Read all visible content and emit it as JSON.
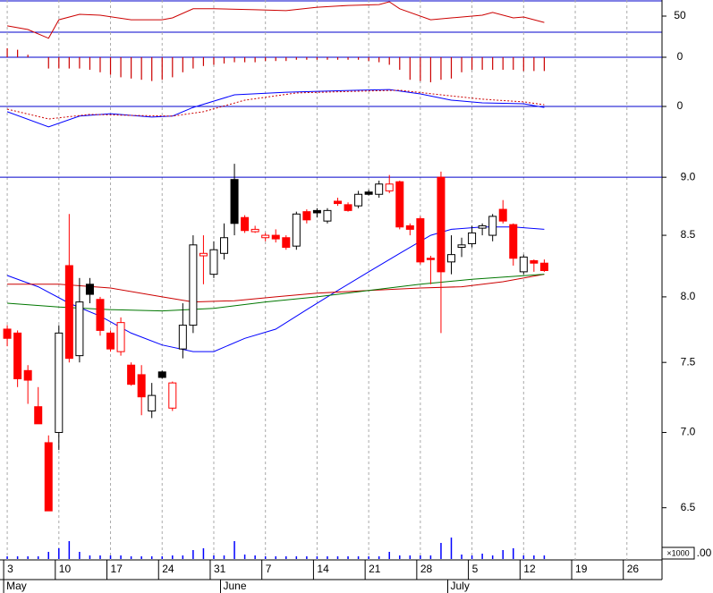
{
  "chart_data": {
    "type": "candlestick",
    "xlim": [
      -0.7,
      63.4
    ],
    "xticks": [
      {
        "value": 0,
        "label": "3"
      },
      {
        "value": 5,
        "label": "10"
      },
      {
        "value": 10,
        "label": "17"
      },
      {
        "value": 15,
        "label": "24"
      },
      {
        "value": 20,
        "label": "31"
      },
      {
        "value": 25,
        "label": "7"
      },
      {
        "value": 30,
        "label": "14"
      },
      {
        "value": 35,
        "label": "21"
      },
      {
        "value": 40,
        "label": "28"
      },
      {
        "value": 45,
        "label": "5"
      },
      {
        "value": 50,
        "label": "12"
      },
      {
        "value": 55,
        "label": "19"
      },
      {
        "value": 60,
        "label": "26"
      }
    ],
    "months": [
      {
        "value": 0,
        "label": "May"
      },
      {
        "value": 21,
        "label": "June"
      },
      {
        "value": 43,
        "label": "July"
      }
    ],
    "grid": true,
    "ylim": [
      6.18,
      9.39
    ],
    "log_scale": true,
    "yticks": [
      {
        "value": 9,
        "label": "9.0"
      },
      8.5,
      {
        "value": 8,
        "label": "8.0"
      },
      7.5,
      {
        "value": 7,
        "label": "7.0"
      },
      6.5
    ],
    "reference_line": 9,
    "candle_styles": {
      "red": {
        "fill": "#ff0000",
        "stroke": "#ff0000"
      },
      "white": {
        "fill": "#ffffff",
        "stroke": "#000000"
      },
      "black": {
        "fill": "#000000",
        "stroke": "#000000"
      },
      "hollow-red": {
        "fill": "#ffffff",
        "stroke": "#ff0000"
      }
    },
    "open": [
      7.75,
      7.72,
      7.44,
      7.18,
      6.93,
      7.0,
      8.25,
      7.55,
      8.1,
      7.98,
      7.72,
      7.58,
      7.48,
      7.41,
      7.15,
      7.43,
      7.17,
      7.6,
      7.78,
      8.33,
      8.18,
      8.35,
      8.98,
      8.65,
      8.53,
      8.5,
      8.5,
      8.48,
      8.41,
      8.7,
      8.71,
      8.62,
      8.79,
      8.76,
      8.75,
      8.87,
      8.85,
      8.94,
      8.96,
      8.58,
      8.64,
      8.31,
      9.0,
      8.28,
      8.4,
      8.43,
      8.56,
      8.5,
      8.72,
      8.59,
      8.2,
      8.29,
      8.27
    ],
    "high": [
      7.78,
      7.74,
      7.48,
      7.32,
      6.98,
      7.78,
      8.68,
      8.15,
      8.15,
      8.0,
      7.74,
      7.84,
      7.5,
      7.48,
      7.35,
      7.44,
      7.36,
      7.95,
      8.5,
      8.5,
      8.45,
      8.6,
      9.12,
      8.67,
      8.58,
      8.52,
      8.55,
      8.5,
      8.7,
      8.72,
      8.73,
      8.73,
      8.82,
      8.78,
      8.88,
      8.89,
      8.97,
      9.02,
      8.97,
      8.6,
      8.66,
      8.33,
      9.05,
      8.5,
      8.48,
      8.58,
      8.6,
      8.68,
      8.8,
      8.6,
      8.34,
      8.3,
      8.3
    ],
    "low": [
      7.62,
      7.32,
      7.2,
      7.06,
      6.48,
      6.88,
      7.5,
      7.5,
      7.95,
      7.7,
      7.58,
      7.55,
      7.33,
      7.12,
      7.1,
      7.38,
      7.15,
      7.53,
      7.72,
      8.1,
      8.15,
      8.3,
      8.5,
      8.52,
      8.52,
      8.45,
      8.44,
      8.38,
      8.38,
      8.6,
      8.65,
      8.6,
      8.75,
      8.7,
      8.73,
      8.84,
      8.82,
      8.86,
      8.55,
      8.5,
      8.26,
      8.1,
      7.72,
      8.18,
      8.32,
      8.4,
      8.5,
      8.45,
      8.6,
      8.25,
      8.18,
      8.2,
      8.2
    ],
    "close": [
      7.68,
      7.38,
      7.37,
      7.06,
      6.48,
      7.72,
      7.53,
      7.96,
      8.02,
      7.74,
      7.6,
      7.8,
      7.34,
      7.25,
      7.26,
      7.39,
      7.35,
      7.78,
      8.42,
      8.35,
      8.38,
      8.48,
      8.6,
      8.54,
      8.55,
      8.48,
      8.47,
      8.4,
      8.68,
      8.63,
      8.69,
      8.71,
      8.77,
      8.71,
      8.85,
      8.85,
      8.94,
      8.88,
      8.57,
      8.55,
      8.28,
      8.3,
      8.2,
      8.34,
      8.42,
      8.52,
      8.58,
      8.66,
      8.62,
      8.31,
      8.32,
      8.27,
      8.21
    ],
    "style": [
      "red",
      "red",
      "red",
      "red",
      "red",
      "white",
      "red",
      "white",
      "black",
      "red",
      "red",
      "hollow-red",
      "red",
      "red",
      "white",
      "black",
      "hollow-red",
      "white",
      "white",
      "hollow-red",
      "white",
      "white",
      "black",
      "red",
      "hollow-red",
      "hollow-red",
      "red",
      "red",
      "white",
      "red",
      "black",
      "white",
      "red",
      "red",
      "white",
      "black",
      "white",
      "hollow-red",
      "red",
      "red",
      "red",
      "red",
      "red",
      "white",
      "white",
      "white",
      "white",
      "white",
      "red",
      "red",
      "white",
      "red",
      "red"
    ],
    "moving_averages": [
      {
        "color": "#0000ff",
        "x": [
          0,
          3,
          6,
          9,
          12,
          15,
          18,
          20,
          23,
          26,
          29,
          32,
          35,
          38,
          41,
          43,
          46,
          49,
          52
        ],
        "values": [
          8.17,
          8.08,
          7.95,
          7.85,
          7.72,
          7.63,
          7.58,
          7.58,
          7.68,
          7.75,
          7.9,
          8.05,
          8.2,
          8.35,
          8.5,
          8.55,
          8.57,
          8.57,
          8.55
        ]
      },
      {
        "color": "#cc0000",
        "x": [
          0,
          5,
          10,
          15,
          18,
          22,
          26,
          30,
          35,
          40,
          44,
          48,
          52
        ],
        "values": [
          8.1,
          8.1,
          8.07,
          8.0,
          7.96,
          7.97,
          8.0,
          8.03,
          8.05,
          8.07,
          8.08,
          8.12,
          8.18
        ]
      },
      {
        "color": "#007700",
        "x": [
          0,
          5,
          10,
          15,
          20,
          25,
          30,
          35,
          40,
          45,
          52
        ],
        "values": [
          7.95,
          7.92,
          7.9,
          7.89,
          7.91,
          7.96,
          8.0,
          8.05,
          8.1,
          8.14,
          8.18
        ]
      }
    ],
    "volume": {
      "color": "#0000ff",
      "ylim": [
        0,
        30
      ],
      "values": [
        3,
        3,
        3,
        3,
        8,
        12,
        20,
        8,
        4,
        4,
        4,
        4,
        3,
        3,
        3,
        3,
        4,
        4,
        10,
        12,
        4,
        4,
        20,
        5,
        4,
        3,
        3,
        3,
        3,
        3,
        3,
        3,
        3,
        3,
        3,
        3,
        3,
        8,
        4,
        4,
        4,
        4,
        18,
        24,
        5,
        4,
        6,
        4,
        10,
        12,
        4,
        4,
        4
      ],
      "axis_label": ".00",
      "unit": "×1000"
    },
    "panel1": {
      "color": "#cc0000",
      "ylim": [
        -25,
        100
      ],
      "yticks": [
        50
      ],
      "x": [
        0,
        2,
        4,
        5,
        7,
        9,
        12,
        15,
        16,
        18,
        20,
        24,
        27,
        30,
        33,
        36,
        37,
        38,
        41,
        43,
        46,
        47,
        49,
        50,
        52
      ],
      "values": [
        18,
        6,
        -23,
        38,
        56,
        53,
        38,
        38,
        44,
        74,
        74,
        71,
        68,
        79,
        85,
        88,
        97,
        74,
        38,
        44,
        53,
        62,
        44,
        47,
        29
      ]
    },
    "panel2": {
      "color": "#cc0000",
      "ylim": [
        -1,
        1
      ],
      "yticks": [
        0
      ],
      "values": [
        0.36,
        0.3,
        0.1,
        0,
        -0.45,
        -0.45,
        -0.45,
        -0.45,
        -0.5,
        -0.6,
        -0.7,
        -0.8,
        -0.85,
        -0.9,
        -0.95,
        -0.9,
        -0.8,
        -0.6,
        -0.45,
        -0.35,
        -0.3,
        -0.25,
        -0.2,
        -0.2,
        -0.2,
        -0.15,
        -0.15,
        -0.15,
        -0.1,
        -0.1,
        -0.1,
        -0.1,
        -0.1,
        -0.1,
        -0.1,
        -0.15,
        -0.2,
        -0.3,
        -0.5,
        -0.9,
        -0.95,
        -1,
        -0.9,
        -0.85,
        -0.6,
        -0.5,
        -0.5,
        -0.5,
        -0.5,
        -0.5,
        -0.55,
        -0.55,
        -0.55
      ]
    },
    "panel3": {
      "ylim": [
        -1,
        1
      ],
      "yticks": [
        0
      ],
      "lines": [
        {
          "color": "#0000ff",
          "dashed": false,
          "x": [
            0,
            4,
            7,
            10,
            14,
            16,
            18,
            22,
            27,
            34,
            37,
            40,
            43,
            46,
            50,
            52
          ],
          "values": [
            -0.22,
            -0.85,
            -0.4,
            -0.3,
            -0.44,
            -0.4,
            -0.04,
            0.48,
            0.59,
            0.67,
            0.7,
            0.52,
            0.26,
            0.15,
            0.11,
            -0.04
          ]
        },
        {
          "color": "#cc0000",
          "dashed": true,
          "x": [
            0,
            4,
            8,
            12,
            16,
            19,
            23,
            28,
            34,
            38,
            42,
            46,
            50,
            52
          ],
          "values": [
            -0.11,
            -0.52,
            -0.33,
            -0.37,
            -0.4,
            -0.22,
            0.26,
            0.56,
            0.63,
            0.67,
            0.48,
            0.3,
            0.19,
            0.07
          ]
        }
      ]
    }
  }
}
